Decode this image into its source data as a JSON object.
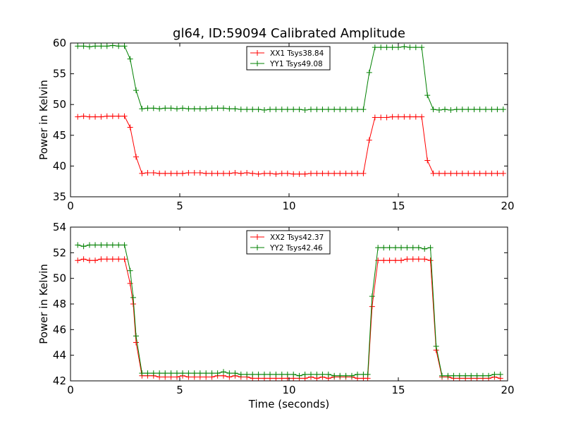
{
  "figure": {
    "title": "gl64, ID:59094 Calibrated Amplitude"
  },
  "chart_data": [
    {
      "type": "line",
      "title": "gl64, ID:59094 Calibrated Amplitude",
      "xlabel": "",
      "ylabel": "Power in Kelvin",
      "xlim": [
        0,
        20
      ],
      "ylim": [
        35,
        60
      ],
      "xticks": [
        0,
        5,
        10,
        15,
        20
      ],
      "yticks": [
        35,
        40,
        45,
        50,
        55,
        60
      ],
      "legend_position": "top-center",
      "grid": false,
      "x": [
        0.33,
        0.6,
        0.87,
        1.13,
        1.4,
        1.67,
        1.93,
        2.2,
        2.47,
        2.73,
        3.0,
        3.27,
        3.53,
        3.8,
        4.07,
        4.33,
        4.6,
        4.87,
        5.13,
        5.4,
        5.67,
        5.93,
        6.2,
        6.47,
        6.73,
        7.0,
        7.27,
        7.53,
        7.8,
        8.07,
        8.33,
        8.6,
        8.87,
        9.13,
        9.4,
        9.67,
        9.93,
        10.2,
        10.47,
        10.73,
        11.0,
        11.27,
        11.53,
        11.8,
        12.07,
        12.33,
        12.6,
        12.87,
        13.13,
        13.4,
        13.67,
        13.93,
        14.2,
        14.47,
        14.73,
        15.0,
        15.27,
        15.53,
        15.8,
        16.07,
        16.33,
        16.6,
        16.87,
        17.13,
        17.4,
        17.67,
        17.93,
        18.2,
        18.47,
        18.73,
        19.0,
        19.27,
        19.53,
        19.8
      ],
      "series": [
        {
          "name": "XX1 Tsys38.84",
          "color": "#ff0000",
          "values": [
            48.0,
            48.1,
            48.0,
            48.0,
            48.0,
            48.1,
            48.1,
            48.1,
            48.1,
            46.3,
            41.5,
            38.8,
            38.9,
            38.9,
            38.8,
            38.8,
            38.8,
            38.8,
            38.8,
            38.9,
            38.9,
            38.9,
            38.8,
            38.8,
            38.8,
            38.8,
            38.8,
            38.9,
            38.8,
            38.9,
            38.8,
            38.7,
            38.8,
            38.8,
            38.7,
            38.8,
            38.8,
            38.7,
            38.7,
            38.7,
            38.8,
            38.8,
            38.8,
            38.8,
            38.8,
            38.8,
            38.8,
            38.8,
            38.8,
            38.8,
            44.2,
            47.9,
            47.9,
            47.9,
            48.0,
            48.0,
            48.0,
            48.0,
            48.0,
            48.0,
            40.9,
            38.8,
            38.8,
            38.8,
            38.8,
            38.8,
            38.8,
            38.8,
            38.8,
            38.8,
            38.8,
            38.8,
            38.8,
            38.8
          ]
        },
        {
          "name": "YY1 Tsys49.08",
          "color": "#008000",
          "values": [
            59.5,
            59.5,
            59.4,
            59.5,
            59.5,
            59.5,
            59.6,
            59.5,
            59.5,
            57.4,
            52.3,
            49.3,
            49.4,
            49.4,
            49.3,
            49.4,
            49.4,
            49.3,
            49.4,
            49.3,
            49.3,
            49.3,
            49.3,
            49.4,
            49.4,
            49.4,
            49.3,
            49.3,
            49.2,
            49.2,
            49.2,
            49.2,
            49.1,
            49.2,
            49.2,
            49.2,
            49.2,
            49.2,
            49.2,
            49.1,
            49.2,
            49.2,
            49.2,
            49.2,
            49.2,
            49.2,
            49.2,
            49.2,
            49.2,
            49.2,
            55.2,
            59.3,
            59.3,
            59.3,
            59.3,
            59.3,
            59.4,
            59.3,
            59.3,
            59.3,
            51.5,
            49.2,
            49.1,
            49.2,
            49.1,
            49.2,
            49.2,
            49.2,
            49.2,
            49.2,
            49.2,
            49.2,
            49.2,
            49.2
          ]
        }
      ]
    },
    {
      "type": "line",
      "title": "",
      "xlabel": "Time (seconds)",
      "ylabel": "Power in Kelvin",
      "xlim": [
        0,
        20
      ],
      "ylim": [
        42,
        54
      ],
      "xticks": [
        0,
        5,
        10,
        15,
        20
      ],
      "yticks": [
        42,
        44,
        46,
        48,
        50,
        52,
        54
      ],
      "legend_position": "top-center",
      "grid": false,
      "x": [
        0.33,
        0.6,
        0.87,
        1.13,
        1.4,
        1.67,
        1.93,
        2.2,
        2.47,
        2.73,
        2.87,
        3.0,
        3.27,
        3.53,
        3.8,
        4.07,
        4.33,
        4.6,
        4.87,
        5.13,
        5.4,
        5.67,
        5.93,
        6.2,
        6.47,
        6.73,
        7.0,
        7.27,
        7.53,
        7.8,
        8.07,
        8.33,
        8.6,
        8.87,
        9.13,
        9.4,
        9.67,
        9.93,
        10.2,
        10.47,
        10.73,
        11.0,
        11.27,
        11.53,
        11.8,
        12.07,
        12.33,
        12.6,
        12.87,
        13.13,
        13.4,
        13.6,
        13.8,
        14.07,
        14.33,
        14.6,
        14.87,
        15.13,
        15.4,
        15.67,
        15.93,
        16.2,
        16.47,
        16.73,
        17.0,
        17.27,
        17.53,
        17.8,
        18.07,
        18.33,
        18.6,
        18.87,
        19.13,
        19.4,
        19.67
      ],
      "series": [
        {
          "name": "XX2 Tsys42.37",
          "color": "#ff0000",
          "values": [
            51.4,
            51.5,
            51.4,
            51.4,
            51.5,
            51.5,
            51.5,
            51.5,
            51.5,
            49.6,
            48.0,
            45.0,
            42.4,
            42.4,
            42.4,
            42.3,
            42.3,
            42.3,
            42.3,
            42.4,
            42.3,
            42.3,
            42.3,
            42.3,
            42.3,
            42.4,
            42.4,
            42.3,
            42.4,
            42.3,
            42.3,
            42.2,
            42.2,
            42.2,
            42.2,
            42.2,
            42.2,
            42.2,
            42.2,
            42.2,
            42.2,
            42.3,
            42.2,
            42.3,
            42.2,
            42.3,
            42.3,
            42.3,
            42.3,
            42.2,
            42.2,
            42.2,
            47.8,
            51.4,
            51.4,
            51.4,
            51.4,
            51.4,
            51.5,
            51.5,
            51.5,
            51.5,
            51.4,
            44.4,
            42.3,
            42.3,
            42.2,
            42.2,
            42.2,
            42.2,
            42.2,
            42.2,
            42.2,
            42.3,
            42.2
          ]
        },
        {
          "name": "YY2 Tsys42.46",
          "color": "#008000",
          "values": [
            52.6,
            52.5,
            52.6,
            52.6,
            52.6,
            52.6,
            52.6,
            52.6,
            52.6,
            50.6,
            48.5,
            45.5,
            42.6,
            42.6,
            42.6,
            42.6,
            42.6,
            42.6,
            42.6,
            42.6,
            42.6,
            42.6,
            42.6,
            42.6,
            42.6,
            42.6,
            42.7,
            42.6,
            42.6,
            42.5,
            42.5,
            42.5,
            42.5,
            42.5,
            42.5,
            42.5,
            42.5,
            42.5,
            42.5,
            42.4,
            42.5,
            42.5,
            42.5,
            42.5,
            42.5,
            42.4,
            42.4,
            42.4,
            42.4,
            42.5,
            42.5,
            42.5,
            48.6,
            52.4,
            52.4,
            52.4,
            52.4,
            52.4,
            52.4,
            52.4,
            52.4,
            52.3,
            52.4,
            44.7,
            42.4,
            42.4,
            42.4,
            42.4,
            42.4,
            42.4,
            42.4,
            42.4,
            42.4,
            42.5,
            42.5
          ]
        }
      ]
    }
  ]
}
